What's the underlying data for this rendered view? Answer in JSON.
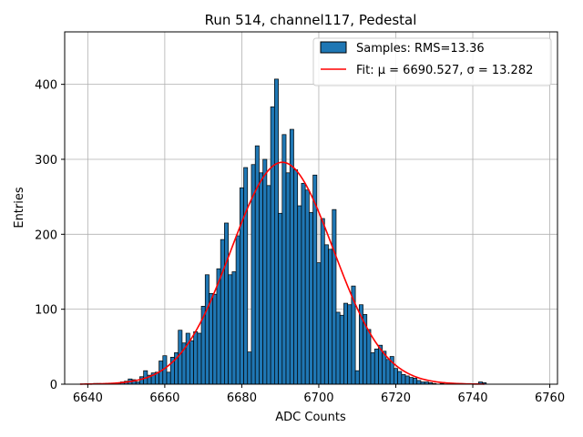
{
  "chart_data": {
    "type": "bar",
    "title": "Run 514, channel117, Pedestal",
    "xlabel": "ADC Counts",
    "ylabel": "Entries",
    "xlim": [
      6634,
      6762
    ],
    "ylim": [
      0,
      470
    ],
    "xticks": [
      6640,
      6660,
      6680,
      6700,
      6720,
      6740,
      6760
    ],
    "yticks": [
      0,
      100,
      200,
      300,
      400
    ],
    "grid": true,
    "legend_position": "top-right",
    "colors": {
      "histogram": "#1f77b4",
      "fit": "#ff0000",
      "edge": "#000000",
      "grid": "#b0b0b0"
    },
    "histogram": {
      "name": "Samples: RMS=13.36",
      "bin_width": 1,
      "x": [
        6642,
        6643,
        6644,
        6645,
        6646,
        6647,
        6648,
        6649,
        6650,
        6651,
        6652,
        6653,
        6654,
        6655,
        6656,
        6657,
        6658,
        6659,
        6660,
        6661,
        6662,
        6663,
        6664,
        6665,
        6666,
        6667,
        6668,
        6669,
        6670,
        6671,
        6672,
        6673,
        6674,
        6675,
        6676,
        6677,
        6678,
        6679,
        6680,
        6681,
        6682,
        6683,
        6684,
        6685,
        6686,
        6687,
        6688,
        6689,
        6690,
        6691,
        6692,
        6693,
        6694,
        6695,
        6696,
        6697,
        6698,
        6699,
        6700,
        6701,
        6702,
        6703,
        6704,
        6705,
        6706,
        6707,
        6708,
        6709,
        6710,
        6711,
        6712,
        6713,
        6714,
        6715,
        6716,
        6717,
        6718,
        6719,
        6720,
        6721,
        6722,
        6723,
        6724,
        6725,
        6726,
        6727,
        6728,
        6729,
        6730,
        6731,
        6732,
        6733,
        6734,
        6735,
        6736,
        6737,
        6738,
        6739,
        6740,
        6741,
        6742,
        6743
      ],
      "values": [
        1,
        1,
        0,
        1,
        1,
        1,
        2,
        3,
        4,
        7,
        6,
        3,
        10,
        18,
        12,
        15,
        16,
        31,
        38,
        16,
        36,
        42,
        72,
        55,
        68,
        58,
        70,
        68,
        104,
        146,
        121,
        120,
        154,
        193,
        215,
        146,
        150,
        198,
        262,
        289,
        43,
        293,
        318,
        282,
        300,
        265,
        370,
        407,
        228,
        333,
        282,
        340,
        286,
        238,
        268,
        259,
        229,
        279,
        162,
        221,
        186,
        180,
        233,
        96,
        92,
        108,
        106,
        131,
        18,
        106,
        93,
        73,
        42,
        47,
        52,
        44,
        33,
        37,
        21,
        17,
        13,
        11,
        9,
        8,
        5,
        3,
        3,
        2,
        1,
        0,
        1,
        0,
        1,
        0,
        0,
        1,
        0,
        0,
        0,
        0,
        3,
        2
      ]
    },
    "fit": {
      "name": "Fit: μ = 6690.527, σ = 13.282",
      "mu": 6690.527,
      "sigma": 13.282,
      "peak": 296,
      "x_range": [
        6638,
        6743
      ]
    }
  }
}
